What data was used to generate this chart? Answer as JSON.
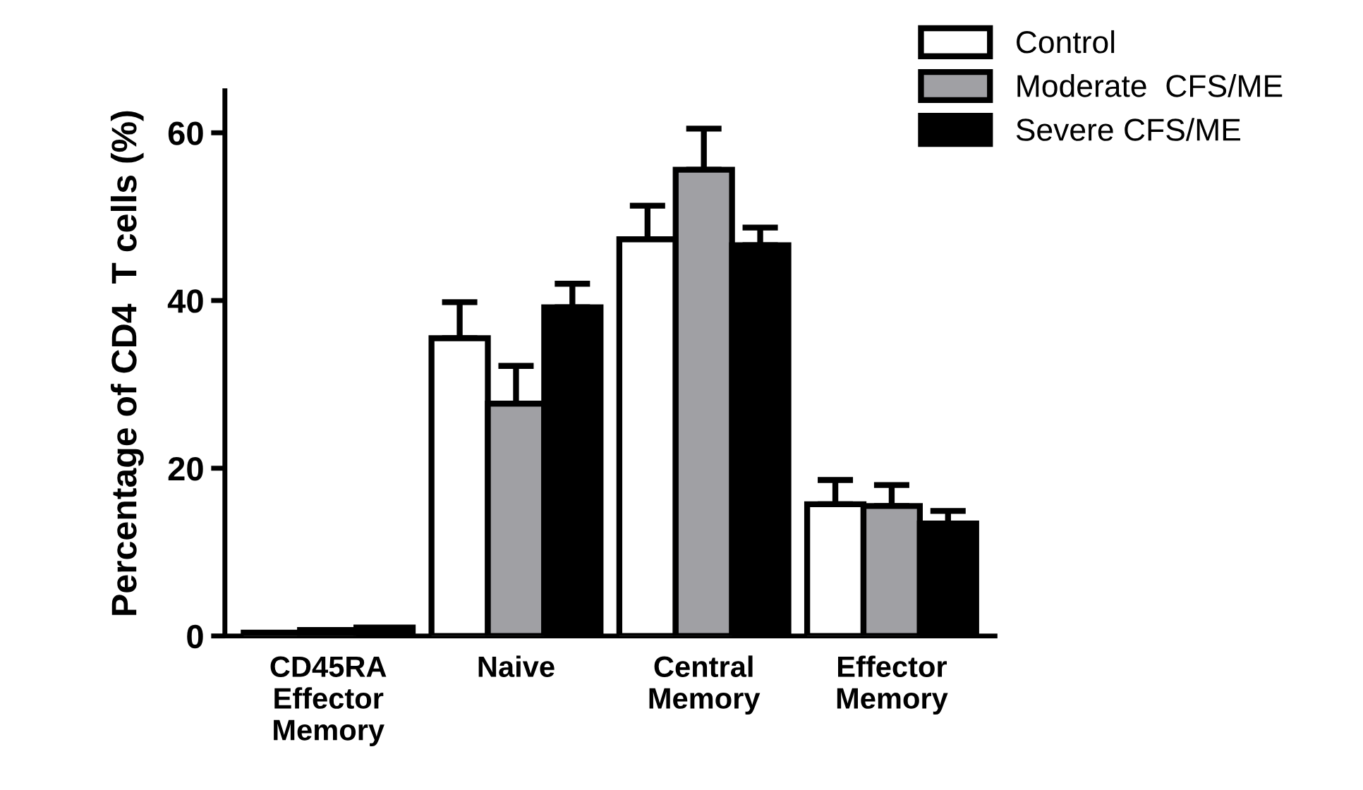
{
  "chart_data": {
    "type": "bar",
    "ylabel": "Percentage of CD4  T cells (%)",
    "categories": [
      "CD45RA\nEffector\nMemory",
      "Naive",
      "Central\nMemory",
      "Effector\nMemory"
    ],
    "series": [
      {
        "name": "Control",
        "color": "#ffffff",
        "values": [
          0.4,
          35.5,
          47.3,
          15.7
        ],
        "errors": [
          null,
          [
            35.5,
            39.8
          ],
          [
            47.3,
            51.3
          ],
          [
            15.7,
            18.6
          ]
        ]
      },
      {
        "name": "Moderate  CFS/ME",
        "color": "#a0a0a4",
        "values": [
          0.7,
          27.7,
          55.6,
          15.5
        ],
        "errors": [
          null,
          [
            27.7,
            32.2
          ],
          [
            55.6,
            60.5
          ],
          [
            15.5,
            18.0
          ]
        ]
      },
      {
        "name": "Severe CFS/ME",
        "color": "#000000",
        "values": [
          1.0,
          39.2,
          46.6,
          13.4
        ],
        "errors": [
          null,
          [
            39.2,
            42.0
          ],
          [
            46.6,
            48.7
          ],
          [
            13.4,
            14.9
          ]
        ]
      }
    ],
    "ylim": [
      0,
      65
    ],
    "yticks": [
      0,
      20,
      40,
      60
    ],
    "grid": false,
    "legend": "top right"
  }
}
